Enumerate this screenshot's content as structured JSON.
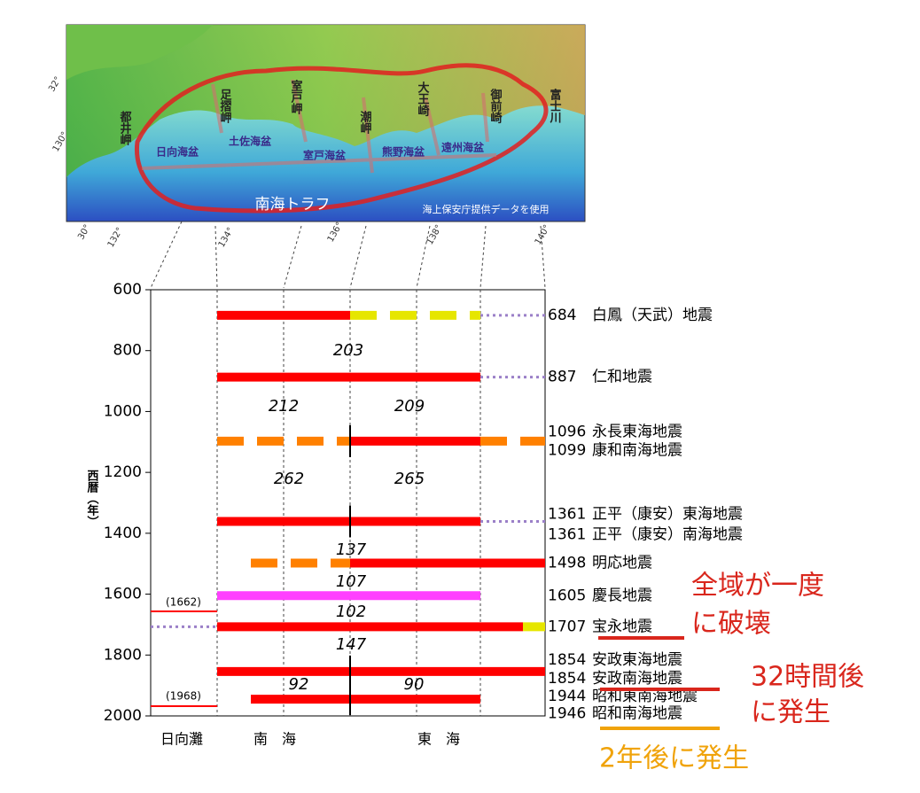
{
  "map": {
    "capes": [
      "都井岬",
      "足摺岬",
      "室戸岬",
      "潮岬",
      "大王崎",
      "御前崎",
      "富士川"
    ],
    "basins": [
      "日向海盆",
      "土佐海盆",
      "室戸海盆",
      "熊野海盆",
      "遠州海盆"
    ],
    "trough": "南海トラフ",
    "credit": "海上保安庁提供データを使用",
    "coord_labels": [
      "32°",
      "130°",
      "30°",
      "132°",
      "134°",
      "136°",
      "138°",
      "140°"
    ]
  },
  "chart_data": {
    "type": "timeline",
    "y_label": "西暦（年）",
    "ylim": [
      600,
      2000
    ],
    "yticks": [
      600,
      800,
      1000,
      1200,
      1400,
      1600,
      1800,
      2000
    ],
    "regions": [
      "日向灘",
      "南　海",
      "東　海"
    ],
    "events": [
      {
        "year": 684,
        "name": "白鳳（天武）地震"
      },
      {
        "year": 887,
        "name": "仁和地震"
      },
      {
        "year": 1096,
        "name": "永長東海地震"
      },
      {
        "year": 1099,
        "name": "康和南海地震"
      },
      {
        "year": 1361,
        "name": "正平（康安）東海地震"
      },
      {
        "year": 1361,
        "name": "正平（康安）南海地震"
      },
      {
        "year": 1498,
        "name": "明応地震"
      },
      {
        "year": 1605,
        "name": "慶長地震"
      },
      {
        "year": 1707,
        "name": "宝永地震"
      },
      {
        "year": 1854,
        "name": "安政東海地震"
      },
      {
        "year": 1854,
        "name": "安政南海地震"
      },
      {
        "year": 1944,
        "name": "昭和東南海地震"
      },
      {
        "year": 1946,
        "name": "昭和南海地震"
      }
    ],
    "intervals": [
      203,
      212,
      209,
      262,
      265,
      137,
      107,
      102,
      147,
      92,
      90
    ],
    "hyuganada_marks": [
      "(1662)",
      "(1968)"
    ],
    "annotations": [
      {
        "lines": [
          "全域が一度",
          "に破壊"
        ],
        "color": "#d9261c"
      },
      {
        "lines": [
          "32時間後",
          "に発生"
        ],
        "color": "#d9261c"
      },
      {
        "lines": [
          "2年後に発生"
        ],
        "color": "#f0a30a"
      }
    ],
    "colors": {
      "rupture": "#ff0000",
      "uncertain": "#ff8000",
      "possible": "#e6e600",
      "link": "#9b80c8",
      "keicho": "#ff40ff"
    }
  }
}
